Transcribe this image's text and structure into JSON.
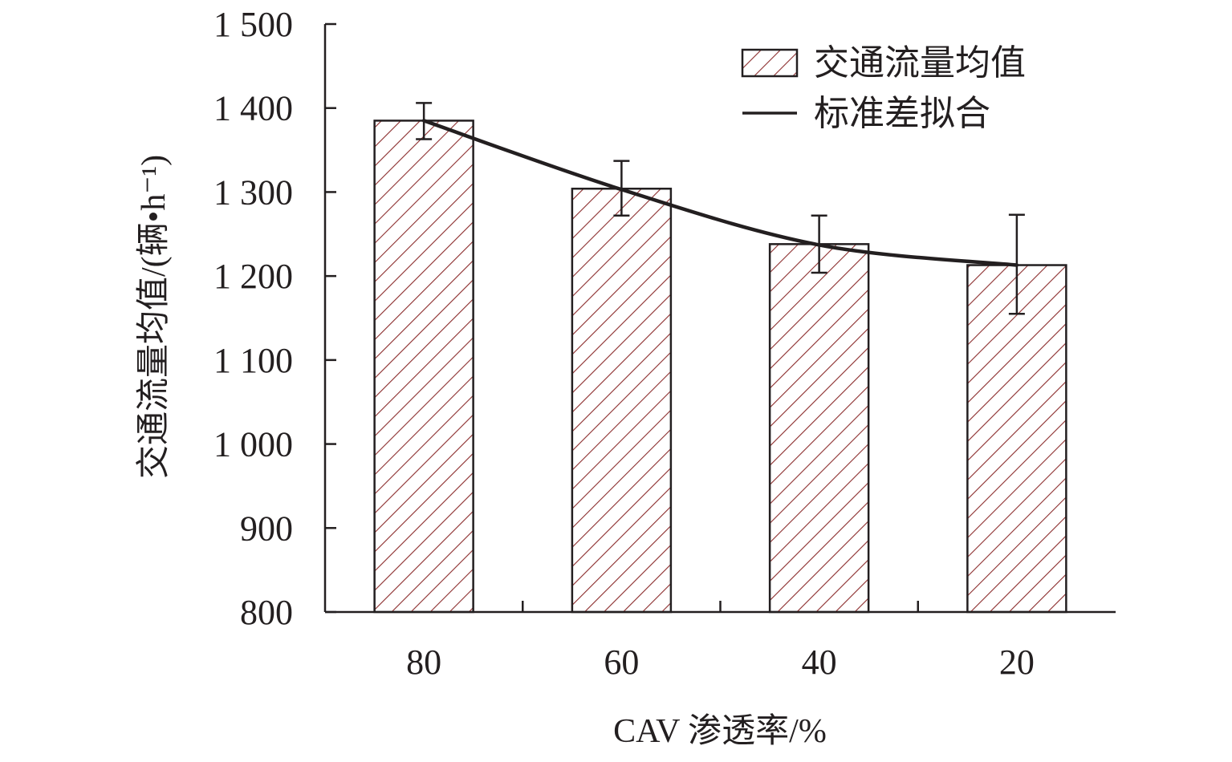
{
  "chart_data": {
    "type": "bar",
    "categories": [
      "80",
      "60",
      "40",
      "20"
    ],
    "series": [
      {
        "name": "交通流量均值",
        "kind": "bar",
        "pattern": "diagonal-hatch",
        "color": "#8b2c2c",
        "values": [
          1385,
          1304,
          1238,
          1213
        ],
        "error_low": [
          1363,
          1272,
          1204,
          1155
        ],
        "error_high": [
          1406,
          1337,
          1272,
          1273
        ]
      },
      {
        "name": "标准差拟合",
        "kind": "line",
        "color": "#231f20",
        "values": [
          1385,
          1303,
          1237,
          1213
        ]
      }
    ],
    "xlabel": "CAV 渗透率/%",
    "ylabel": "交通流量均值/(辆•h⁻¹)",
    "ylim": [
      800,
      1500
    ],
    "yticks": [
      800,
      900,
      1000,
      1100,
      1200,
      1300,
      1400,
      1500
    ],
    "ytick_labels": [
      "800",
      "900",
      "1 000",
      "1 100",
      "1 200",
      "1 300",
      "1 400",
      "1 500"
    ],
    "grid": false,
    "legend_position": "top-right"
  },
  "colors": {
    "bar_hatch": "#8b2c2c",
    "axis": "#231f20"
  }
}
